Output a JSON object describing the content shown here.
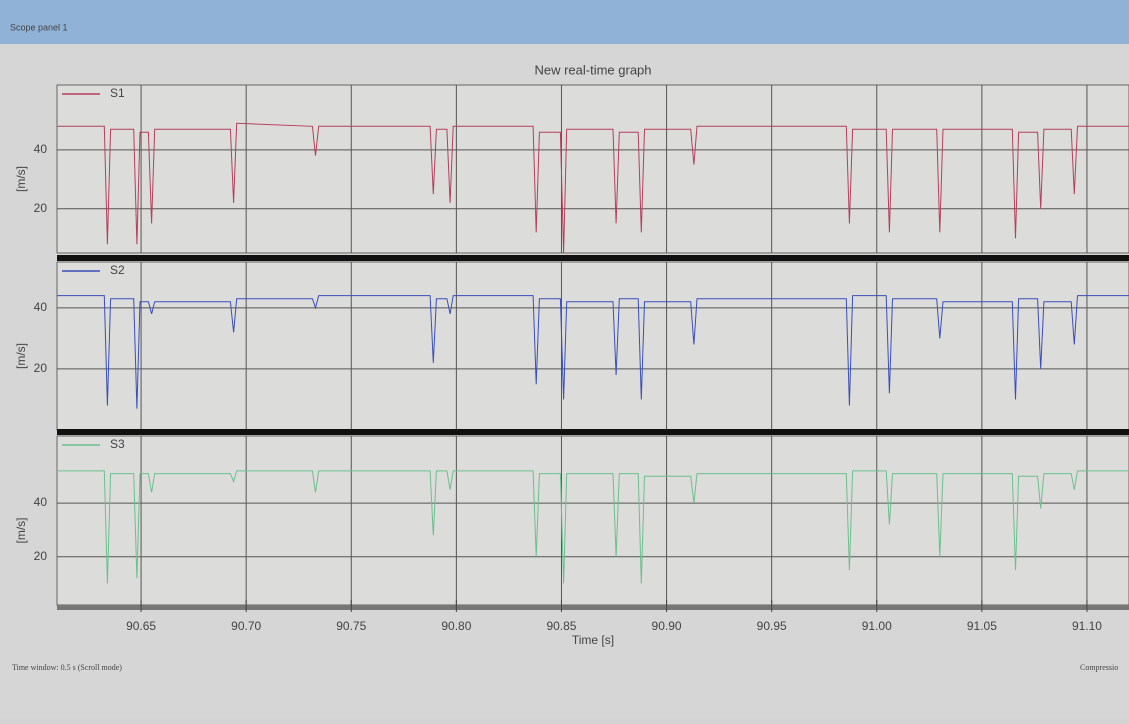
{
  "window_title": "Scope panel 1",
  "footer": {
    "left": "Time window: 0.5 s (Scroll mode)",
    "right": "Compressio"
  },
  "chart_data": {
    "type": "line",
    "title": "New real-time graph",
    "xlabel": "Time [s]",
    "ylabel": "[m/s]",
    "xlim": [
      90.61,
      91.12
    ],
    "xticks": [
      90.65,
      {
        "value": 90.7,
        "label": "90.70"
      },
      90.75,
      {
        "value": 90.8,
        "label": "90.80"
      },
      90.85,
      {
        "value": 90.9,
        "label": "90.90"
      },
      90.95,
      {
        "value": 91.0,
        "label": "91.00"
      },
      91.05,
      {
        "value": 91.1,
        "label": "91.10"
      }
    ],
    "grid": true,
    "x": [
      90.61,
      90.6325,
      90.634,
      90.6355,
      90.6465,
      90.648,
      90.6495,
      90.6535,
      90.655,
      90.6565,
      90.6925,
      90.694,
      90.6955,
      90.7315,
      90.733,
      90.7345,
      90.7875,
      90.789,
      90.7905,
      90.7955,
      90.797,
      90.7985,
      90.8365,
      90.838,
      90.8395,
      90.8495,
      90.851,
      90.8525,
      90.8745,
      90.876,
      90.8775,
      90.8865,
      90.888,
      90.8895,
      90.9115,
      90.913,
      90.9145,
      90.9855,
      90.987,
      90.9885,
      91.0045,
      91.006,
      91.0075,
      91.0285,
      91.03,
      91.0315,
      91.0645,
      91.066,
      91.0675,
      91.0765,
      91.078,
      91.0795,
      91.0925,
      91.094,
      91.0955,
      91.12
    ],
    "series": [
      {
        "name": "S1",
        "color": "#b4405c",
        "ylim": [
          5,
          62
        ],
        "yticks": [
          20,
          40
        ],
        "values": [
          48,
          48,
          8,
          47,
          47,
          8,
          46,
          46,
          15,
          47,
          47,
          22,
          49,
          48,
          38,
          48,
          48,
          25,
          47,
          47,
          22,
          48,
          48,
          12,
          46,
          46,
          5,
          47,
          47,
          15,
          46,
          46,
          12,
          47,
          47,
          35,
          48,
          48,
          15,
          47,
          47,
          12,
          47,
          47,
          12,
          47,
          47,
          10,
          46,
          46,
          20,
          47,
          47,
          25,
          48,
          48
        ]
      },
      {
        "name": "S2",
        "color": "#3a4fb8",
        "ylim": [
          0,
          55
        ],
        "yticks": [
          20,
          40
        ],
        "values": [
          44,
          44,
          8,
          43,
          43,
          7,
          42,
          42,
          38,
          42,
          42,
          32,
          43,
          43,
          40,
          44,
          44,
          22,
          43,
          43,
          38,
          44,
          44,
          15,
          43,
          43,
          10,
          42,
          42,
          18,
          43,
          43,
          10,
          42,
          42,
          28,
          43,
          43,
          8,
          44,
          44,
          12,
          43,
          43,
          30,
          42,
          42,
          10,
          43,
          43,
          20,
          42,
          42,
          28,
          44,
          44
        ]
      },
      {
        "name": "S3",
        "color": "#6cc08e",
        "ylim": [
          2,
          65
        ],
        "yticks": [
          20,
          40
        ],
        "values": [
          52,
          52,
          10,
          51,
          51,
          12,
          51,
          51,
          44,
          51,
          51,
          48,
          52,
          52,
          44,
          52,
          52,
          28,
          52,
          52,
          45,
          52,
          52,
          20,
          51,
          51,
          10,
          51,
          51,
          20,
          51,
          51,
          10,
          50,
          50,
          40,
          51,
          51,
          15,
          52,
          52,
          32,
          51,
          51,
          20,
          51,
          51,
          15,
          50,
          50,
          38,
          51,
          51,
          45,
          52,
          52
        ]
      }
    ]
  }
}
